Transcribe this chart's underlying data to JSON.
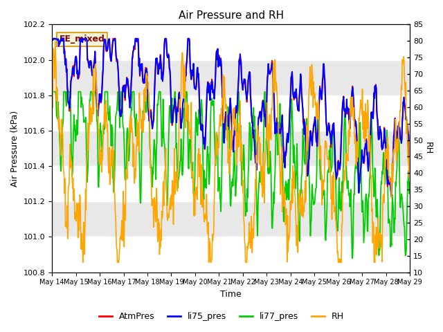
{
  "title": "Air Pressure and RH",
  "ylabel_left": "Air Pressure (kPa)",
  "ylabel_right": "RH",
  "xlabel": "Time",
  "ylim_left": [
    100.8,
    102.2
  ],
  "ylim_right": [
    10,
    85
  ],
  "yticks_left": [
    100.8,
    101.0,
    101.2,
    101.4,
    101.6,
    101.8,
    102.0,
    102.2
  ],
  "yticks_right": [
    10,
    15,
    20,
    25,
    30,
    35,
    40,
    45,
    50,
    55,
    60,
    65,
    70,
    75,
    80,
    85
  ],
  "xticklabels": [
    "May 14",
    "May 15",
    "May 16",
    "May 17",
    "May 18",
    "May 19",
    "May 20",
    "May 21",
    "May 22",
    "May 23",
    "May 24",
    "May 25",
    "May 26",
    "May 27",
    "May 28",
    "May 29"
  ],
  "annotation_text": "EE_mixed",
  "annotation_color": "#8B0000",
  "annotation_bg": "#F5F5DC",
  "annotation_border": "#DAA520",
  "colors": {
    "AtmPres": "#FF0000",
    "li75_pres": "#0000FF",
    "li77_pres": "#00CC00",
    "RH": "#FFA500"
  },
  "legend_labels": [
    "AtmPres",
    "li75_pres",
    "li77_pres",
    "RH"
  ],
  "bg_inner": "#E8E8E8",
  "hspan_gray": "#D3D3D3",
  "n_points": 800
}
